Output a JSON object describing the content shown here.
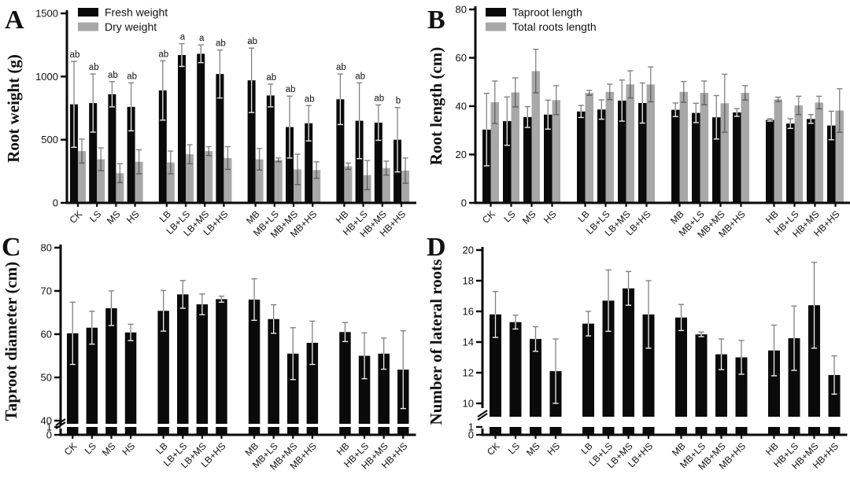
{
  "colors": {
    "bar_black": "#0a0a0a",
    "bar_gray": "#a8a8a8",
    "error_bar": "#828282"
  },
  "chart_data": [
    {
      "id": "A",
      "type": "bar",
      "panel_letter": "A",
      "ylabel": "Root weight (g)",
      "xlabel": "",
      "ylim": [
        0,
        1500
      ],
      "yticks": [
        "0",
        "500",
        "1000",
        "1500"
      ],
      "grid": false,
      "legend_position": "top-left",
      "group_size": 4,
      "categories": [
        "CK",
        "LS",
        "MS",
        "HS",
        "LB",
        "LB+LS",
        "LB+MS",
        "LB+HS",
        "MB",
        "MB+LS",
        "MB+MS",
        "MB+HS",
        "HB",
        "HB+LS",
        "HB+MS",
        "HB+HS"
      ],
      "series": [
        {
          "name": "Fresh weight",
          "color": "#0a0a0a",
          "values": [
            780,
            790,
            860,
            760,
            890,
            1170,
            1180,
            1020,
            970,
            850,
            600,
            630,
            820,
            650,
            635,
            500
          ],
          "errors": [
            340,
            230,
            100,
            190,
            235,
            90,
            70,
            190,
            255,
            90,
            245,
            140,
            200,
            300,
            140,
            255
          ]
        },
        {
          "name": "Dry weight",
          "color": "#a8a8a8",
          "values": [
            410,
            345,
            235,
            325,
            320,
            385,
            410,
            355,
            345,
            340,
            265,
            260,
            290,
            220,
            275,
            255
          ],
          "errors": [
            95,
            90,
            75,
            95,
            90,
            75,
            35,
            90,
            85,
            15,
            120,
            65,
            25,
            115,
            55,
            100
          ]
        }
      ],
      "sig_letters": [
        "ab",
        "ab",
        "ab",
        "ab",
        "ab",
        "a",
        "a",
        "ab",
        "ab",
        "ab",
        "ab",
        "ab",
        "ab",
        "ab",
        "ab",
        "b"
      ]
    },
    {
      "id": "B",
      "type": "bar",
      "panel_letter": "B",
      "ylabel": "Root length (cm)",
      "xlabel": "",
      "ylim": [
        0,
        80
      ],
      "yticks": [
        "0",
        "20",
        "40",
        "60",
        "80"
      ],
      "grid": false,
      "legend_position": "top-left",
      "group_size": 4,
      "categories": [
        "CK",
        "LS",
        "MS",
        "HS",
        "LB",
        "LB+LS",
        "LB+MS",
        "LB+HS",
        "MB",
        "MB+LS",
        "MB+MS",
        "MB+HS",
        "HB",
        "HB+LS",
        "HB+MS",
        "HB+HS"
      ],
      "series": [
        {
          "name": "Taproot length",
          "color": "#0a0a0a",
          "values": [
            30.3,
            33.8,
            35.5,
            36.5,
            37.8,
            38.6,
            42.3,
            41.3,
            38.5,
            37.2,
            35.4,
            37.4,
            34.3,
            32.8,
            34.7,
            32.0
          ],
          "errors": [
            15,
            10,
            4.3,
            6,
            2.5,
            4,
            8.5,
            8.3,
            2.8,
            4,
            9,
            1.6,
            0.5,
            2,
            1.8,
            5.9
          ]
        },
        {
          "name": "Total roots length",
          "color": "#a8a8a8",
          "values": [
            41.6,
            45.7,
            54.5,
            42.5,
            45.5,
            45.9,
            49.0,
            49.0,
            45.9,
            45.5,
            41.2,
            45.5,
            42.8,
            40.3,
            41.5,
            38.2
          ],
          "errors": [
            8.8,
            6,
            9,
            6,
            1,
            3.2,
            5.6,
            7.2,
            4.3,
            4.9,
            12,
            3,
            0.9,
            3.8,
            2.6,
            9
          ]
        }
      ],
      "sig_letters": null
    },
    {
      "id": "C",
      "type": "bar",
      "panel_letter": "C",
      "ylabel": "Taproot diameter (cm)",
      "xlabel": "",
      "ylim": [
        40,
        80
      ],
      "yticks": [
        "40",
        "50",
        "60",
        "70",
        "80"
      ],
      "axis_break": {
        "lower_ticks": [
          "0",
          "1"
        ],
        "upper_start": 40
      },
      "grid": false,
      "legend_position": "none",
      "group_size": 4,
      "categories": [
        "CK",
        "LS",
        "MS",
        "HS",
        "LB",
        "LB+LS",
        "LB+MS",
        "LB+HS",
        "MB",
        "MB+LS",
        "MB+MS",
        "MB+HS",
        "HB",
        "HB+LS",
        "HB+MS",
        "HB+HS"
      ],
      "series": [
        {
          "name": "Taproot diameter",
          "color": "#0a0a0a",
          "values": [
            60.2,
            61.5,
            66.0,
            60.4,
            65.4,
            69.2,
            66.9,
            68.1,
            68.0,
            63.5,
            55.5,
            58.0,
            60.5,
            55.0,
            55.5,
            51.8
          ],
          "errors": [
            7.2,
            3.8,
            4.0,
            1.9,
            4.7,
            3.2,
            2.4,
            0.7,
            4.8,
            3.3,
            6.0,
            5.0,
            2.2,
            5.3,
            3.6,
            9.0
          ]
        }
      ],
      "sig_letters": null
    },
    {
      "id": "D",
      "type": "bar",
      "panel_letter": "D",
      "ylabel": "Number of lateral roots",
      "xlabel": "",
      "ylim": [
        10,
        20
      ],
      "yticks": [
        "10",
        "12",
        "14",
        "16",
        "18",
        "20"
      ],
      "axis_break": {
        "lower_ticks": [
          "0",
          "1"
        ],
        "upper_start": 10
      },
      "grid": false,
      "legend_position": "none",
      "group_size": 4,
      "categories": [
        "CK",
        "LS",
        "MS",
        "HS",
        "LB",
        "LB+LS",
        "LB+MS",
        "LB+HS",
        "MB",
        "MB+LS",
        "MB+MS",
        "MB+HS",
        "HB",
        "HB+LS",
        "HB+MS",
        "HB+HS"
      ],
      "series": [
        {
          "name": "Number of lateral roots",
          "color": "#0a0a0a",
          "values": [
            15.8,
            15.3,
            14.2,
            12.1,
            15.2,
            16.7,
            17.5,
            15.8,
            15.6,
            14.5,
            13.2,
            13.0,
            13.45,
            14.25,
            16.4,
            11.85
          ],
          "errors": [
            1.5,
            0.45,
            0.8,
            2.1,
            0.8,
            2.0,
            1.1,
            2.2,
            0.85,
            0.15,
            1.0,
            1.1,
            1.65,
            2.1,
            2.8,
            1.25
          ]
        }
      ],
      "sig_letters": null
    }
  ]
}
